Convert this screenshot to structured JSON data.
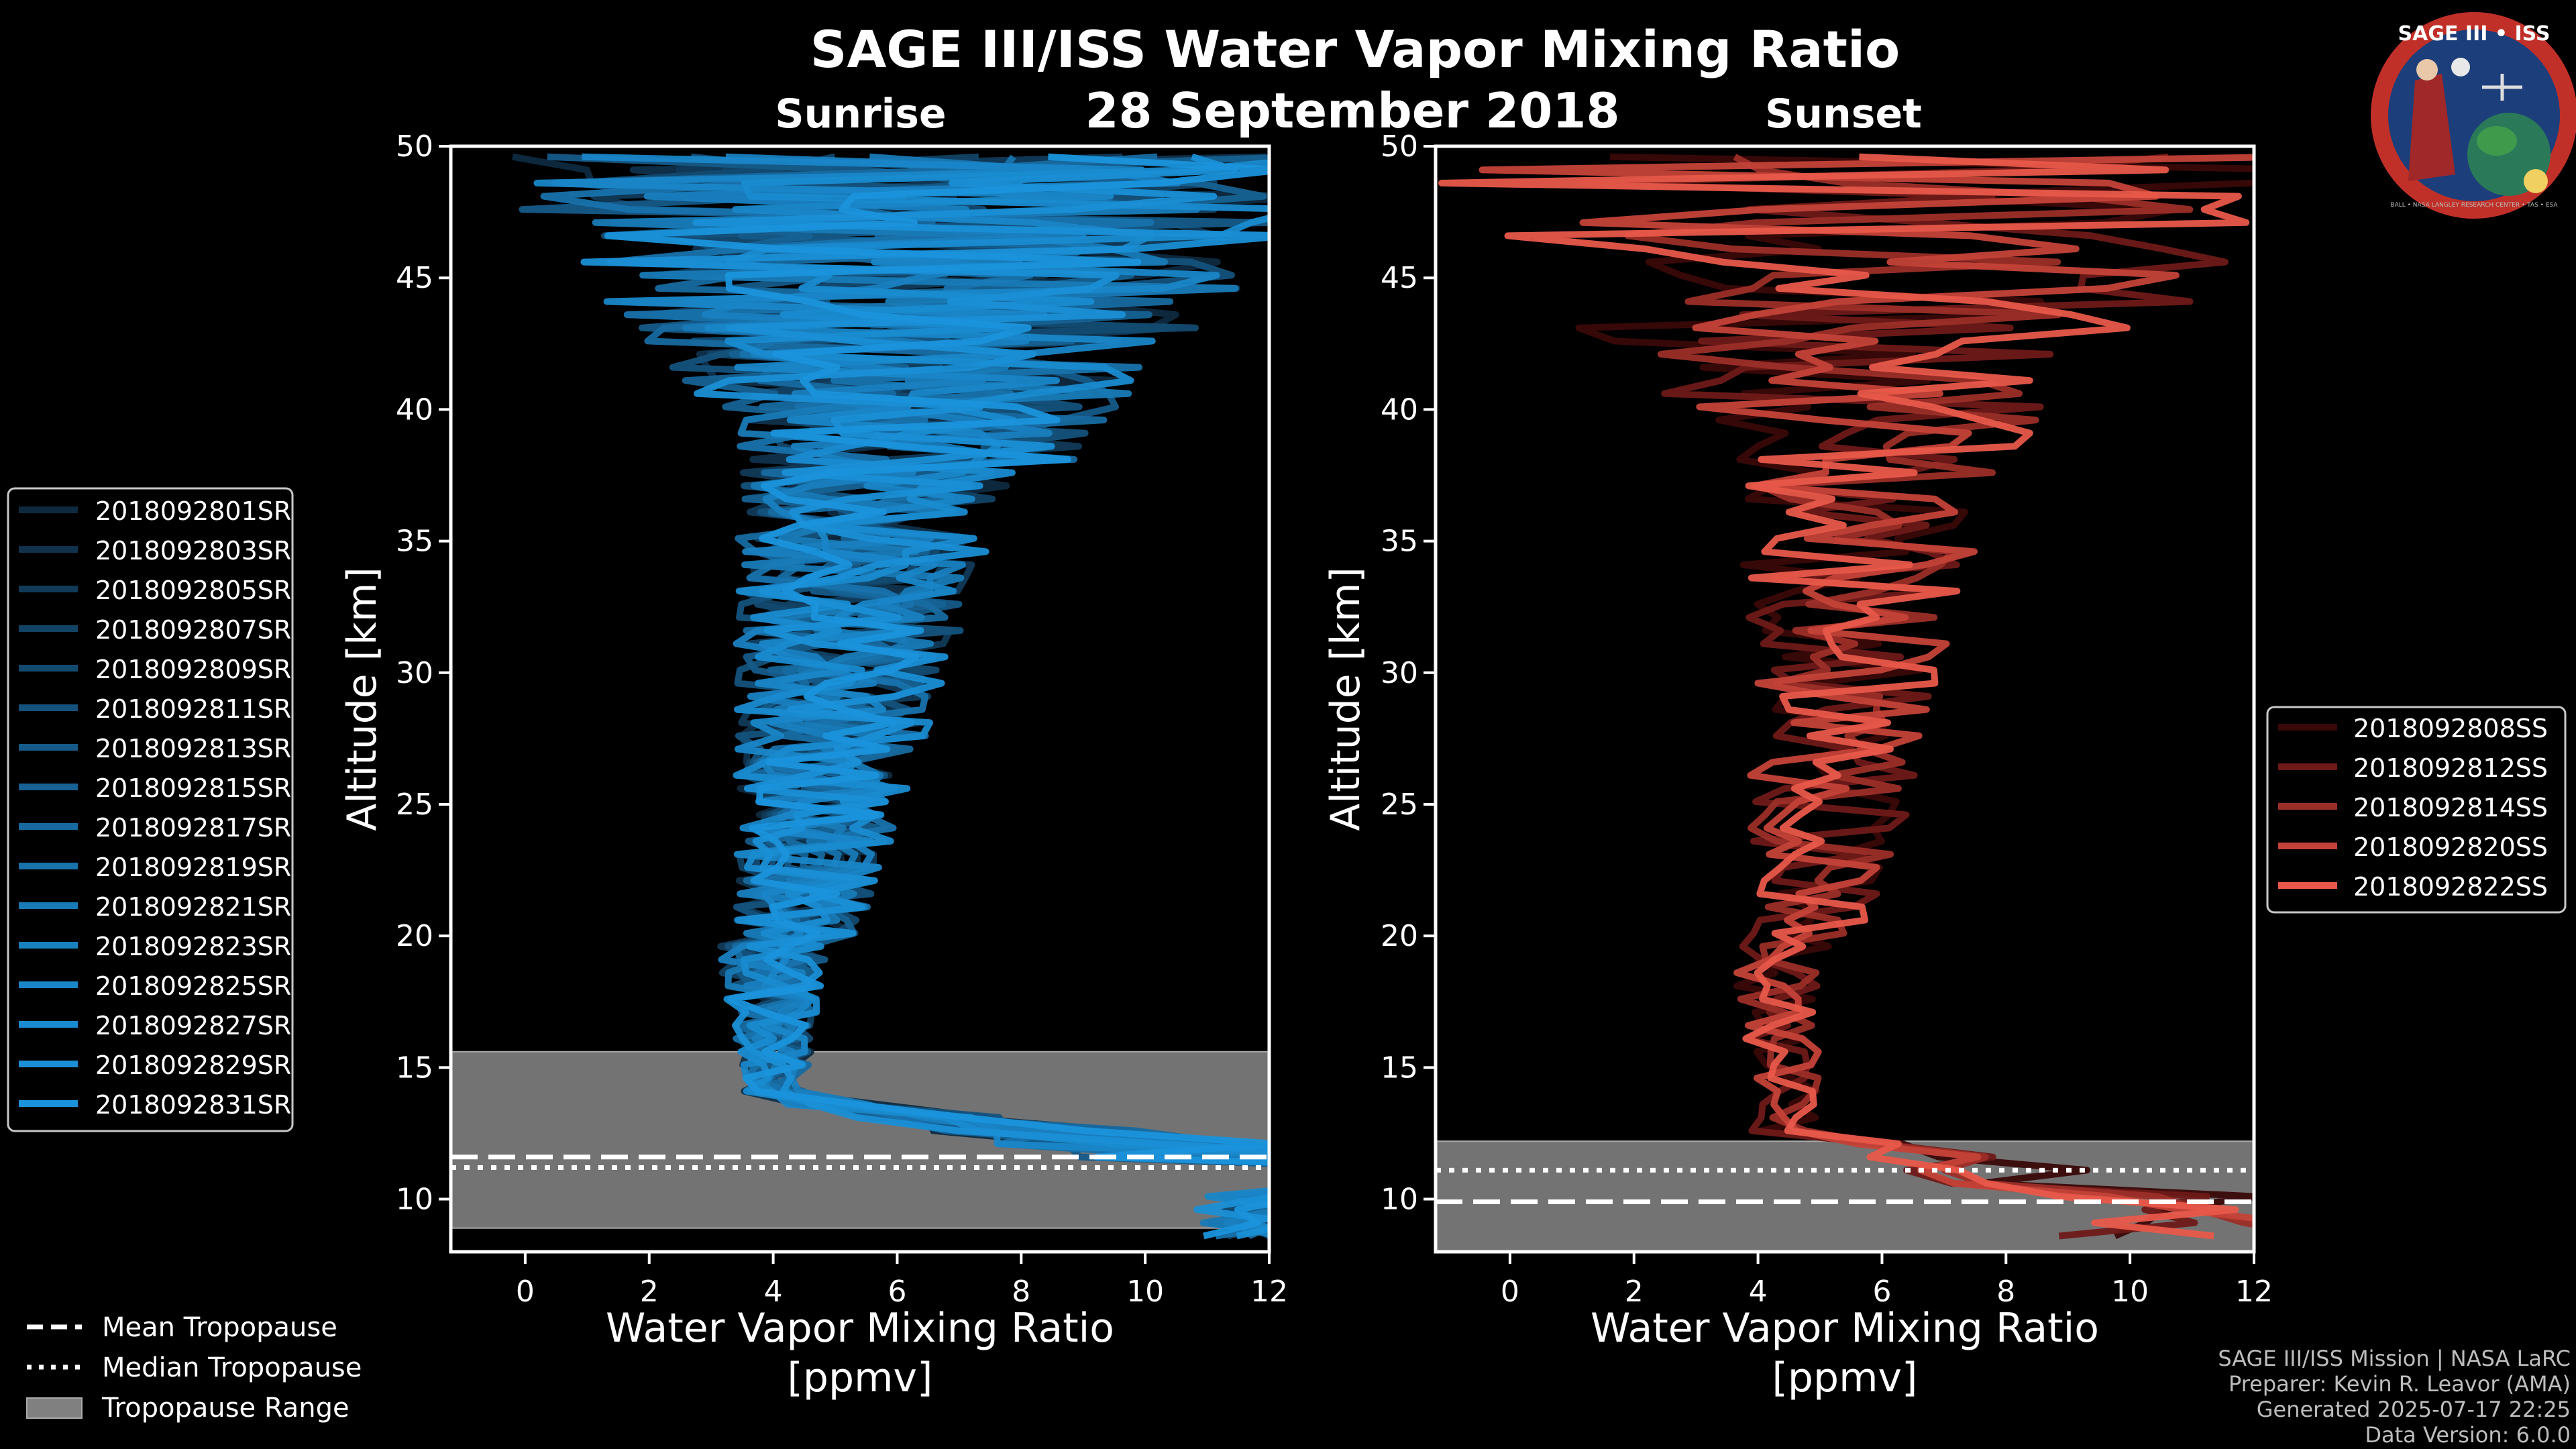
{
  "title": "SAGE III/ISS Water Vapor Mixing Ratio",
  "date": "28 September 2018",
  "logo": {
    "title": "SAGE III • ISS",
    "ring_text": "BALL • NASA LANGLEY RESEARCH CENTER • TAS • ESA"
  },
  "footer": {
    "line1": "SAGE III/ISS Mission | NASA LaRC",
    "line2": "Preparer: Kevin R. Leavor (AMA)",
    "line3": "Generated 2025-07-17 22:25",
    "line4": "Data Version: 6.0.0"
  },
  "colors": {
    "sunrise": "#1a8fd6",
    "sunset": "#e8584a",
    "tropo_fill": "#808080"
  },
  "tropo_legend": [
    {
      "label": "Mean Tropopause",
      "style": "dashed"
    },
    {
      "label": "Median Tropopause",
      "style": "dotted"
    },
    {
      "label": "Tropopause Range",
      "style": "patch"
    }
  ],
  "chart_data": [
    {
      "type": "line",
      "panel": "sunrise",
      "subtitle": "Sunrise",
      "xlabel": "Water Vapor Mixing Ratio\n[ppmv]",
      "ylabel": "Altitude [km]",
      "xlim": [
        -1.2,
        12
      ],
      "ylim": [
        8,
        50
      ],
      "xticks": [
        0,
        2,
        4,
        6,
        8,
        10,
        12
      ],
      "yticks": [
        10,
        15,
        20,
        25,
        30,
        35,
        40,
        45,
        50
      ],
      "tropopause": {
        "mean": 11.6,
        "median": 11.2,
        "range": [
          8.9,
          15.6
        ]
      },
      "series": [
        {
          "name": "2018092801SR",
          "color": "#0e2a40",
          "seed": 1
        },
        {
          "name": "2018092803SR",
          "color": "#10324c",
          "seed": 2
        },
        {
          "name": "2018092805SR",
          "color": "#113a58",
          "seed": 3
        },
        {
          "name": "2018092807SR",
          "color": "#124264",
          "seed": 4
        },
        {
          "name": "2018092809SR",
          "color": "#134a70",
          "seed": 5
        },
        {
          "name": "2018092811SR",
          "color": "#14527c",
          "seed": 6
        },
        {
          "name": "2018092813SR",
          "color": "#155a88",
          "seed": 7
        },
        {
          "name": "2018092815SR",
          "color": "#166294",
          "seed": 8
        },
        {
          "name": "2018092817SR",
          "color": "#176aa0",
          "seed": 9
        },
        {
          "name": "2018092819SR",
          "color": "#1872ac",
          "seed": 10
        },
        {
          "name": "2018092821SR",
          "color": "#187ab6",
          "seed": 11
        },
        {
          "name": "2018092823SR",
          "color": "#1980c0",
          "seed": 12
        },
        {
          "name": "2018092825SR",
          "color": "#1986c8",
          "seed": 13
        },
        {
          "name": "2018092827SR",
          "color": "#198bd0",
          "seed": 14
        },
        {
          "name": "2018092829SR",
          "color": "#1a8fd6",
          "seed": 15
        },
        {
          "name": "2018092831SR",
          "color": "#1a93dc",
          "seed": 16
        }
      ]
    },
    {
      "type": "line",
      "panel": "sunset",
      "subtitle": "Sunset",
      "xlabel": "Water Vapor Mixing Ratio\n[ppmv]",
      "ylabel": "Altitude [km]",
      "xlim": [
        -1.2,
        12
      ],
      "ylim": [
        8,
        50
      ],
      "xticks": [
        0,
        2,
        4,
        6,
        8,
        10,
        12
      ],
      "yticks": [
        10,
        15,
        20,
        25,
        30,
        35,
        40,
        45,
        50
      ],
      "tropopause": {
        "mean": 9.9,
        "median": 11.1,
        "range": [
          8.0,
          12.2
        ]
      },
      "series": [
        {
          "name": "2018092808SS",
          "color": "#3a0808",
          "seed": 21
        },
        {
          "name": "2018092812SS",
          "color": "#6e1a18",
          "seed": 22
        },
        {
          "name": "2018092814SS",
          "color": "#9c2e28",
          "seed": 23
        },
        {
          "name": "2018092820SS",
          "color": "#c44238",
          "seed": 24
        },
        {
          "name": "2018092822SS",
          "color": "#e8584a",
          "seed": 25
        }
      ]
    }
  ]
}
